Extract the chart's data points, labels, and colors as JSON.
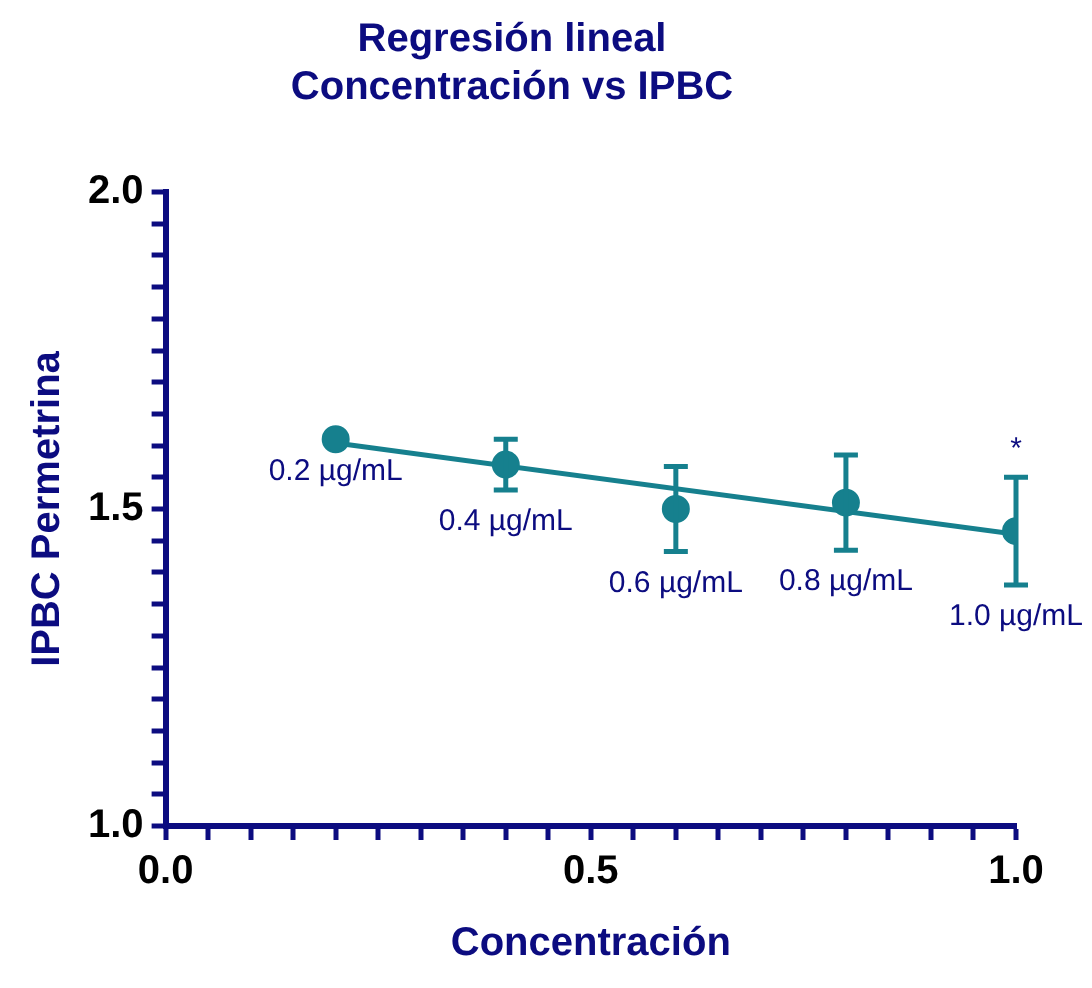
{
  "chart_data": {
    "type": "scatter",
    "title": "Regresión lineal\nConcentración vs IPBC",
    "xlabel": "Concentración",
    "ylabel": "IPBC Permetrina",
    "series": [
      {
        "marker": "circle",
        "color": "#16808e",
        "x": [
          0.2,
          0.4,
          0.6,
          0.8,
          1.0
        ],
        "values": [
          1.61,
          1.57,
          1.5,
          1.51,
          1.465
        ],
        "errors": [
          null,
          0.04,
          0.067,
          0.075,
          0.085
        ]
      },
      {
        "type": "line",
        "marker": "none",
        "color": "#16808e",
        "x": [
          0.2,
          1.0
        ],
        "values": [
          1.604,
          1.46
        ]
      }
    ],
    "line_style": "solid",
    "grid": false,
    "legend": false,
    "xlim": [
      0,
      1
    ],
    "ylim": [
      1,
      2
    ],
    "xticks": [
      {
        "value": 0,
        "label": "0.0"
      },
      {
        "value": 0.05,
        "label": null
      },
      {
        "value": 0.1,
        "label": null
      },
      {
        "value": 0.15,
        "label": null
      },
      {
        "value": 0.2,
        "label": null
      },
      {
        "value": 0.25,
        "label": null
      },
      {
        "value": 0.3,
        "label": null
      },
      {
        "value": 0.35,
        "label": null
      },
      {
        "value": 0.4,
        "label": null
      },
      {
        "value": 0.45,
        "label": null
      },
      {
        "value": 0.5,
        "label": "0.5"
      },
      {
        "value": 0.55,
        "label": null
      },
      {
        "value": 0.6,
        "label": null
      },
      {
        "value": 0.65,
        "label": null
      },
      {
        "value": 0.7,
        "label": null
      },
      {
        "value": 0.75,
        "label": null
      },
      {
        "value": 0.8,
        "label": null
      },
      {
        "value": 0.85,
        "label": null
      },
      {
        "value": 0.9,
        "label": null
      },
      {
        "value": 0.95,
        "label": null
      },
      {
        "value": 1,
        "label": "1.0"
      }
    ],
    "yticks": [
      {
        "value": 1,
        "label": "1.0"
      },
      {
        "value": 1.05,
        "label": null
      },
      {
        "value": 1.1,
        "label": null
      },
      {
        "value": 1.15,
        "label": null
      },
      {
        "value": 1.2,
        "label": null
      },
      {
        "value": 1.25,
        "label": null
      },
      {
        "value": 1.3,
        "label": null
      },
      {
        "value": 1.35,
        "label": null
      },
      {
        "value": 1.4,
        "label": null
      },
      {
        "value": 1.45,
        "label": null
      },
      {
        "value": 1.5,
        "label": "1.5"
      },
      {
        "value": 1.55,
        "label": null
      },
      {
        "value": 1.6,
        "label": null
      },
      {
        "value": 1.65,
        "label": null
      },
      {
        "value": 1.7,
        "label": null
      },
      {
        "value": 1.75,
        "label": null
      },
      {
        "value": 1.8,
        "label": null
      },
      {
        "value": 1.85,
        "label": null
      },
      {
        "value": 1.9,
        "label": null
      },
      {
        "value": 1.95,
        "label": null
      },
      {
        "value": 2,
        "label": "2.0"
      }
    ],
    "annotations": [
      {
        "text": "0.2 µg/mL",
        "x": 0.2,
        "y": 1.61
      },
      {
        "text": "0.4 µg/mL",
        "x": 0.4,
        "y": 1.57
      },
      {
        "text": "0.6 µg/mL",
        "x": 0.6,
        "y": 1.5
      },
      {
        "text": "0.8 µg/mL",
        "x": 0.8,
        "y": 1.51
      },
      {
        "text": "1.0 µg/mL",
        "x": 1.0,
        "y": 1.465
      },
      {
        "text": "*",
        "x": 1.0,
        "y": 1.55
      }
    ]
  }
}
